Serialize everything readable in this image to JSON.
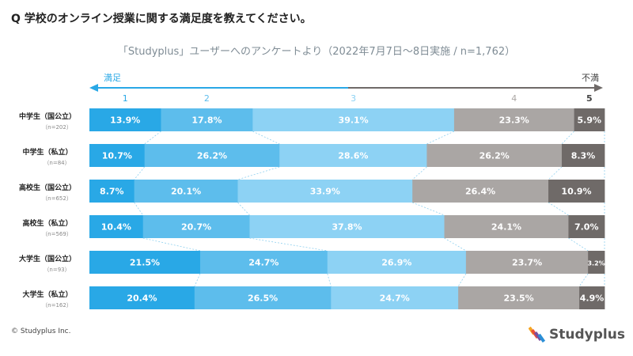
{
  "question": "Q 学校のオンライン授業に関する満足度を教えてください。",
  "subtitle": "「Studyplus」ユーザーへのアンケートより（2022年7月7日〜8日実施 / n=1,762）",
  "copyright": "© Studyplus Inc.",
  "brand": "Studyplus",
  "colors": [
    "#29a8e6",
    "#5dbdec",
    "#8dd2f4",
    "#aaa6a4",
    "#6f6a68"
  ],
  "label_colors": [
    "#29a8e6",
    "#5dbdec",
    "#8dd2f4",
    "#aaa6a4",
    "#444444"
  ],
  "chart_data": {
    "type": "bar",
    "orientation": "horizontal-stacked-100",
    "scale_left": "満足",
    "scale_right": "不満",
    "scale_levels": [
      "1",
      "2",
      "3",
      "4",
      "5"
    ],
    "categories": [
      {
        "name": "中学生（国公立）",
        "n": "（n=202）"
      },
      {
        "name": "中学生（私立）",
        "n": "（n=84）"
      },
      {
        "name": "高校生（国公立）",
        "n": "（n=652）"
      },
      {
        "name": "高校生（私立）",
        "n": "（n=569）"
      },
      {
        "name": "大学生（国公立）",
        "n": "（n=93）"
      },
      {
        "name": "大学生（私立）",
        "n": "（n=162）"
      }
    ],
    "values": [
      [
        13.9,
        17.8,
        39.1,
        23.3,
        5.9
      ],
      [
        10.7,
        26.2,
        28.6,
        26.2,
        8.3
      ],
      [
        8.7,
        20.1,
        33.9,
        26.4,
        10.9
      ],
      [
        10.4,
        20.7,
        37.8,
        24.1,
        7.0
      ],
      [
        21.5,
        24.7,
        26.9,
        23.7,
        3.2
      ],
      [
        20.4,
        26.5,
        24.7,
        23.5,
        4.9
      ]
    ],
    "labels": [
      [
        "13.9%",
        "17.8%",
        "39.1%",
        "23.3%",
        "5.9%"
      ],
      [
        "10.7%",
        "26.2%",
        "28.6%",
        "26.2%",
        "8.3%"
      ],
      [
        "8.7%",
        "20.1%",
        "33.9%",
        "26.4%",
        "10.9%"
      ],
      [
        "10.4%",
        "20.7%",
        "37.8%",
        "24.1%",
        "7.0%"
      ],
      [
        "21.5%",
        "24.7%",
        "26.9%",
        "23.7%",
        "3.2%"
      ],
      [
        "20.4%",
        "26.5%",
        "24.7%",
        "23.5%",
        "4.9%"
      ]
    ],
    "unit": "%"
  }
}
